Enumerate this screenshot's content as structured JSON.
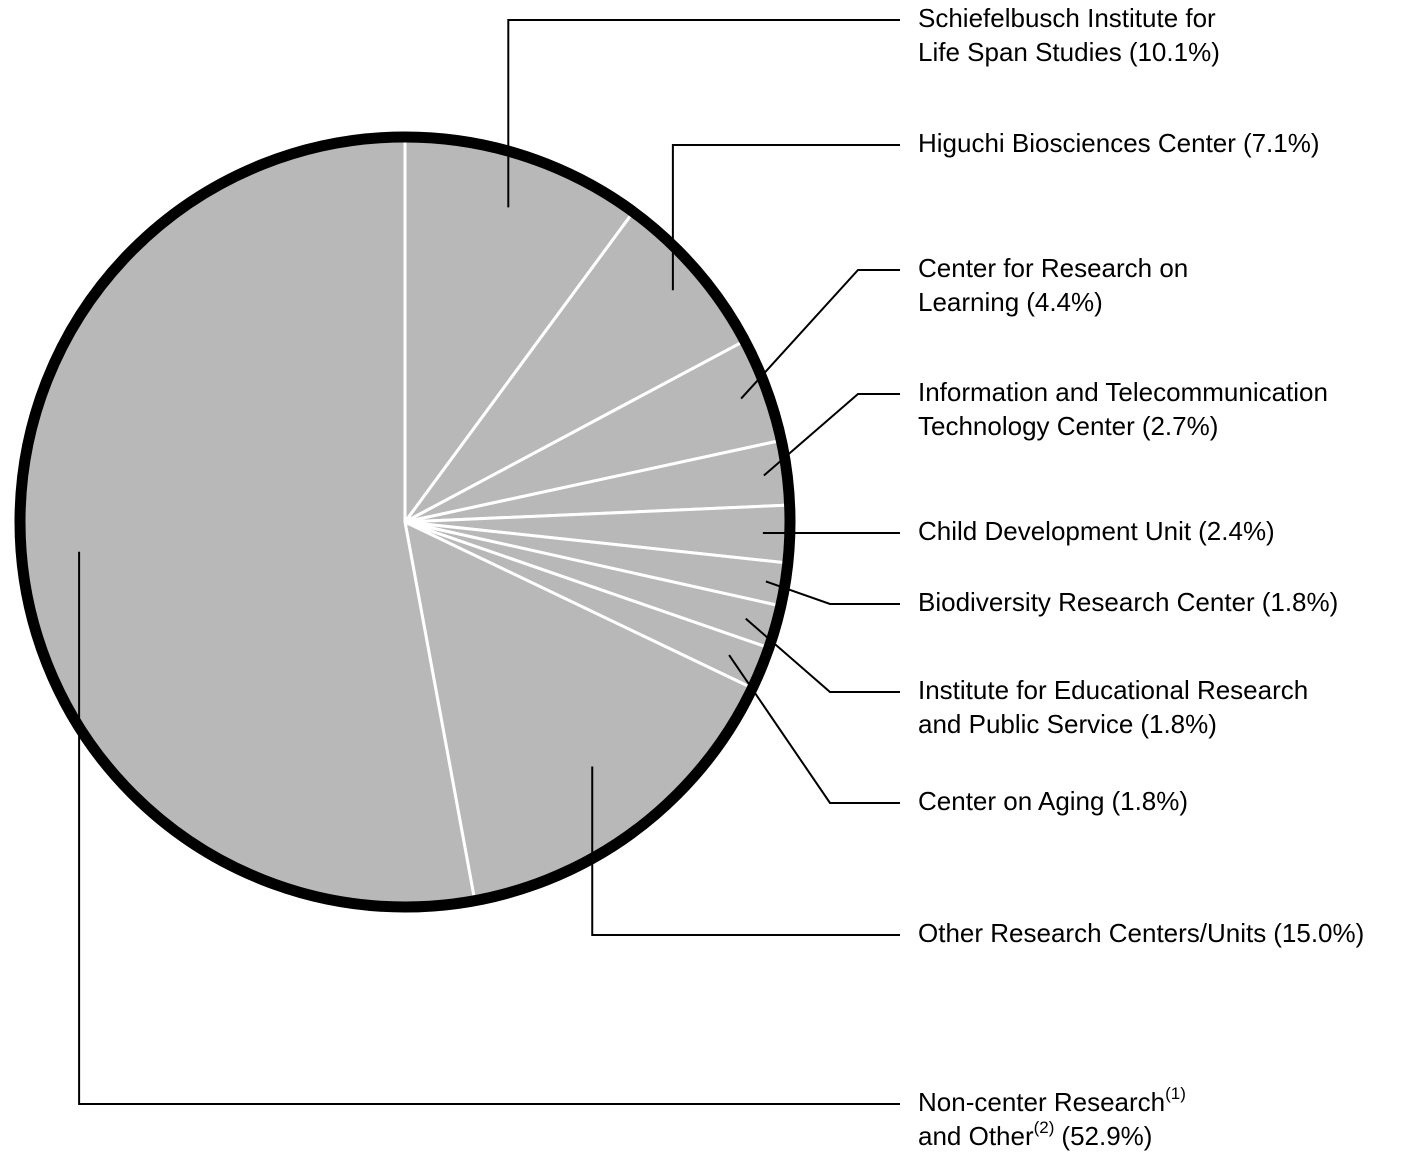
{
  "chart_data": {
    "type": "pie",
    "categories": [
      [
        "Schiefelbusch Institute for",
        "Life Span Studies"
      ],
      [
        "Higuchi Biosciences Center"
      ],
      [
        "Center for Research on",
        "Learning"
      ],
      [
        "Information and Telecommunication",
        "Technology Center"
      ],
      [
        "Child Development Unit"
      ],
      [
        "Biodiversity Research Center"
      ],
      [
        "Institute for Educational Research",
        "and Public Service"
      ],
      [
        "Center on Aging"
      ],
      [
        "Other Research Centers/Units"
      ],
      [
        "Non-center Research(1)",
        "and Other(2)"
      ]
    ],
    "values": [
      10.1,
      7.1,
      4.4,
      2.7,
      2.4,
      1.8,
      1.8,
      1.8,
      15.0,
      52.9
    ],
    "value_labels": [
      "(10.1%)",
      "(7.1%)",
      "(4.4%)",
      "(2.7%)",
      "(2.4%)",
      "(1.8%)",
      "(1.8%)",
      "(1.8%)",
      "(15.0%)",
      "(52.9%)"
    ],
    "color": "#b8b8b8"
  }
}
